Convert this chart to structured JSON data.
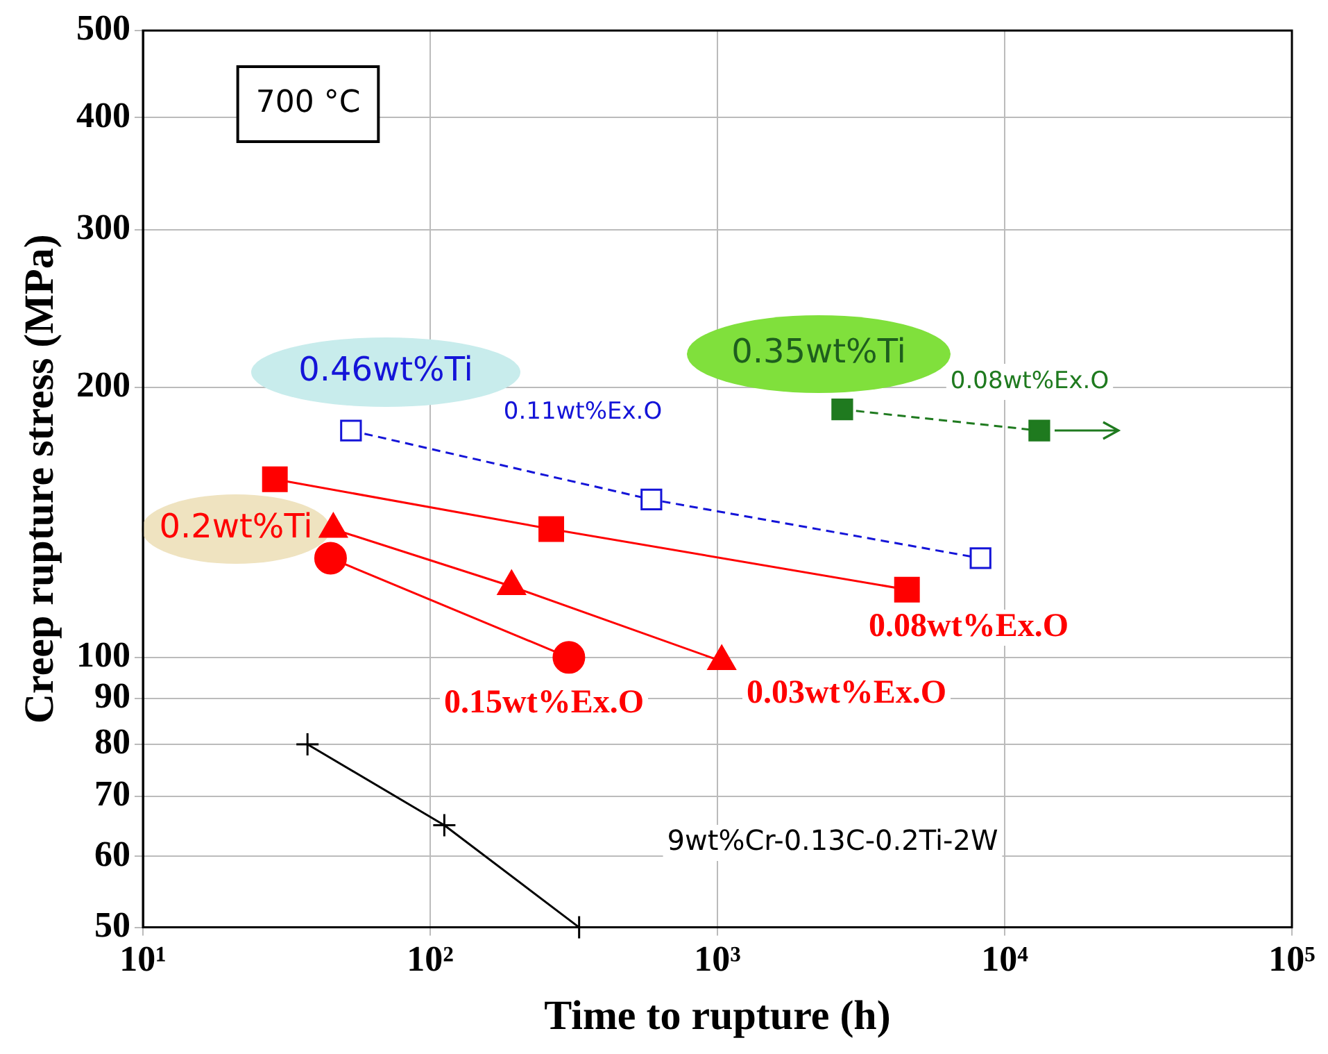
{
  "chart_data": {
    "type": "line",
    "xlabel": "Time to rupture (h)",
    "ylabel": "Creep rupture stress (MPa)",
    "log": "xy",
    "xlim": [
      10,
      100000
    ],
    "ylim": [
      50,
      500
    ],
    "xticks": [
      {
        "value": 10,
        "label": "10¹"
      },
      {
        "value": 100,
        "label": "10²"
      },
      {
        "value": 1000,
        "label": "10³"
      },
      {
        "value": 10000,
        "label": "10⁴"
      },
      {
        "value": 100000,
        "label": "10⁵"
      }
    ],
    "yticks": [
      50,
      60,
      70,
      80,
      90,
      100,
      200,
      300,
      400,
      500
    ],
    "grid": true,
    "legend": false,
    "annotations": [
      "700 °C",
      "0.46wt%Ti",
      "0.2wt%Ti",
      "0.35wt%Ti"
    ],
    "series": [
      {
        "name": "0.11wt%Ex.O",
        "color": "#1414d8",
        "marker": "square",
        "line_style": "dashed",
        "x": [
          53,
          589,
          8240
        ],
        "values": [
          179,
          150,
          129
        ]
      },
      {
        "name": "0.08wt%Ex.O",
        "color": "#ff0000",
        "marker": "square",
        "line_style": "solid",
        "x": [
          28.8,
          264,
          4570
        ],
        "values": [
          158,
          139,
          119
        ]
      },
      {
        "name": "0.03wt%Ex.O",
        "color": "#ff0000",
        "marker": "triangle",
        "line_style": "solid",
        "x": [
          46,
          192,
          1035
        ],
        "values": [
          139,
          120,
          99
        ]
      },
      {
        "name": "0.15wt%Ex.O",
        "color": "#ff0000",
        "marker": "circle",
        "line_style": "solid",
        "x": [
          45,
          304
        ],
        "values": [
          129,
          100
        ]
      },
      {
        "name": "0.08wt%Ex.O",
        "color": "#1f7a1f",
        "marker": "square",
        "line_style": "dashed",
        "x": [
          2720,
          13200
        ],
        "values": [
          189,
          179
        ]
      },
      {
        "name": "9wt%Cr-0.13C-0.2Ti-2W",
        "color": "#000000",
        "marker": "cross",
        "line_style": "solid",
        "x": [
          37.4,
          112,
          330
        ],
        "values": [
          80,
          65,
          50
        ]
      }
    ]
  }
}
